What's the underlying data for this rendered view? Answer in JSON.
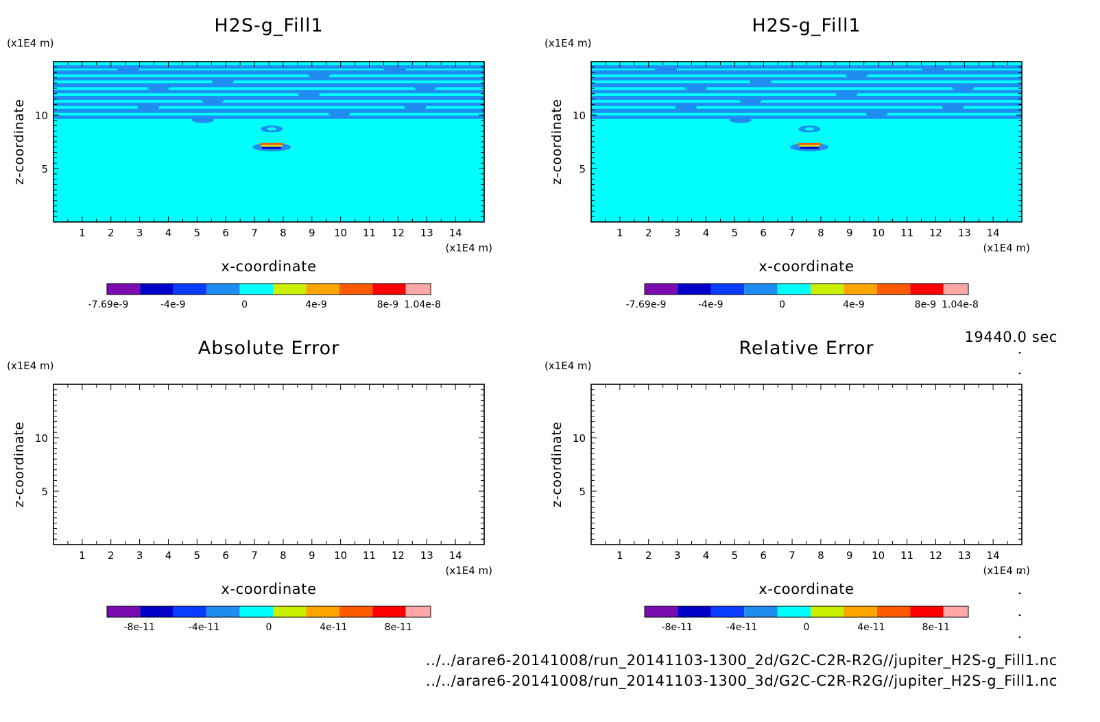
{
  "time_label": "19440.0 sec",
  "footer": {
    "line1": "../../arare6-20141008/run_20141103-1300_2d/G2C-C2R-R2G//jupiter_H2S-g_Fill1.nc",
    "line2": "../../arare6-20141008/run_20141103-1300_3d/G2C-C2R-R2G//jupiter_H2S-g_Fill1.nc"
  },
  "palette": [
    "#7a0bb0",
    "#0000c8",
    "#0a3cff",
    "#1e8cf0",
    "#00ffff",
    "#c8f000",
    "#ffa500",
    "#ff5a00",
    "#ff0000",
    "#ffa8a8"
  ],
  "chart_data": [
    {
      "type": "heatmap",
      "title": "H2S-g_Fill1",
      "xlabel": "x-coordinate",
      "ylabel": "z-coordinate",
      "x_unit": "(x1E4 m)",
      "y_unit": "(x1E4 m)",
      "xlim": [
        0,
        15
      ],
      "ylim": [
        0,
        15
      ],
      "xticks": [
        1,
        2,
        3,
        4,
        5,
        6,
        7,
        8,
        9,
        10,
        11,
        12,
        13,
        14
      ],
      "yticks": [
        5,
        10
      ],
      "field": "filled",
      "background_color": "#00ffff",
      "band_color": "#1e8cf0",
      "band_z": [
        14.5,
        14.0,
        13.4,
        12.8,
        12.2,
        11.6,
        11.0,
        10.4,
        9.8
      ],
      "anomaly": {
        "x": 7.6,
        "z": 7.0,
        "max": 1.04e-08,
        "min": -7.69e-09
      },
      "colorbar": {
        "labels": [
          "-7.69e-9",
          "-4e-9",
          "0",
          "4e-9",
          "8e-9",
          "1.04e-8"
        ],
        "label_values": [
          -7.69e-09,
          -4e-09,
          0,
          4e-09,
          8e-09,
          1.04e-08
        ],
        "min": -7.69e-09,
        "max": 1.04e-08
      }
    },
    {
      "type": "heatmap",
      "title": "H2S-g_Fill1",
      "xlabel": "x-coordinate",
      "ylabel": "z-coordinate",
      "x_unit": "(x1E4 m)",
      "y_unit": "(x1E4 m)",
      "xlim": [
        0,
        15
      ],
      "ylim": [
        0,
        15
      ],
      "xticks": [
        1,
        2,
        3,
        4,
        5,
        6,
        7,
        8,
        9,
        10,
        11,
        12,
        13,
        14
      ],
      "yticks": [
        5,
        10
      ],
      "field": "filled",
      "background_color": "#00ffff",
      "band_color": "#1e8cf0",
      "band_z": [
        14.5,
        14.0,
        13.4,
        12.8,
        12.2,
        11.6,
        11.0,
        10.4,
        9.8
      ],
      "anomaly": {
        "x": 7.6,
        "z": 7.0,
        "max": 1.04e-08,
        "min": -7.69e-09
      },
      "colorbar": {
        "labels": [
          "-7.69e-9",
          "-4e-9",
          "0",
          "4e-9",
          "8e-9",
          "1.04e-8"
        ],
        "label_values": [
          -7.69e-09,
          -4e-09,
          0,
          4e-09,
          8e-09,
          1.04e-08
        ],
        "min": -7.69e-09,
        "max": 1.04e-08
      }
    },
    {
      "type": "heatmap",
      "title": "Absolute Error",
      "xlabel": "x-coordinate",
      "ylabel": "z-coordinate",
      "x_unit": "(x1E4 m)",
      "y_unit": "(x1E4 m)",
      "xlim": [
        0,
        15
      ],
      "ylim": [
        0,
        15
      ],
      "xticks": [
        1,
        2,
        3,
        4,
        5,
        6,
        7,
        8,
        9,
        10,
        11,
        12,
        13,
        14
      ],
      "yticks": [
        5,
        10
      ],
      "field": "empty",
      "colorbar": {
        "labels": [
          "-8e-11",
          "-4e-11",
          "0",
          "4e-11",
          "8e-11"
        ],
        "label_values": [
          -8e-11,
          -4e-11,
          0,
          4e-11,
          8e-11
        ],
        "min": -1e-10,
        "max": 1e-10
      }
    },
    {
      "type": "heatmap",
      "title": "Relative Error",
      "xlabel": "x-coordinate",
      "ylabel": "z-coordinate",
      "x_unit": "(x1E4 m)",
      "y_unit": "(x1E4 m)",
      "xlim": [
        0,
        15
      ],
      "ylim": [
        0,
        15
      ],
      "xticks": [
        1,
        2,
        3,
        4,
        5,
        6,
        7,
        8,
        9,
        10,
        11,
        12,
        13,
        14
      ],
      "yticks": [
        5,
        10
      ],
      "field": "empty",
      "colorbar": {
        "labels": [
          "-8e-11",
          "-4e-11",
          "0",
          "4e-11",
          "8e-11"
        ],
        "label_values": [
          -8e-11,
          -4e-11,
          0,
          4e-11,
          8e-11
        ],
        "min": -1e-10,
        "max": 1e-10
      }
    }
  ]
}
